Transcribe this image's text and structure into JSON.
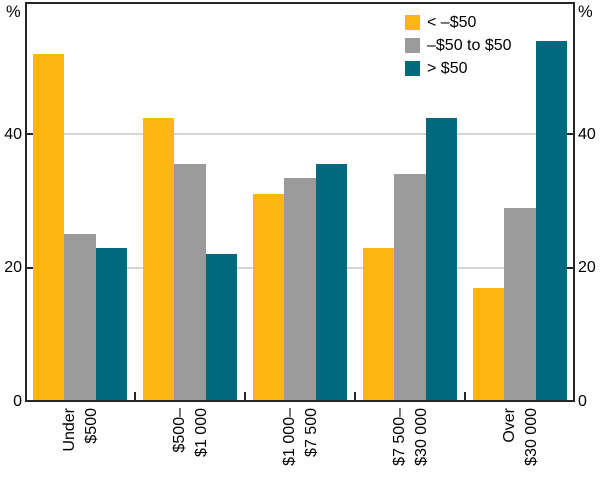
{
  "chart_data": {
    "type": "bar",
    "title": "",
    "categories": [
      [
        "Under",
        "$500"
      ],
      [
        "$500–",
        "$1 000"
      ],
      [
        "$1 000–",
        "$7 500"
      ],
      [
        "$7 500–",
        "$30 000"
      ],
      [
        "Over",
        "$30 000"
      ]
    ],
    "series": [
      {
        "name": "< –$50",
        "color": "#fdb612",
        "values": [
          52,
          42.5,
          31,
          23,
          17
        ]
      },
      {
        "name": "–$50 to $50",
        "color": "#9b9b9b",
        "values": [
          25,
          35.5,
          33.5,
          34,
          29
        ]
      },
      {
        "name": "> $50",
        "color": "#00697e",
        "values": [
          23,
          22,
          35.5,
          42.5,
          54
        ]
      }
    ],
    "y_axis": {
      "unit": "%",
      "ticks": [
        0,
        20,
        40
      ],
      "gridlines": [
        20,
        40
      ],
      "min": 0,
      "max": 59.7,
      "sides": "both"
    },
    "x_axis": {
      "label": "",
      "boundary_ticks": true
    },
    "legend_position": "top-right-inside",
    "grid": true,
    "colors": {
      "axis": "#262626",
      "gridline": "#d4d4d4",
      "background": "#ffffff",
      "text": "#000000"
    }
  }
}
